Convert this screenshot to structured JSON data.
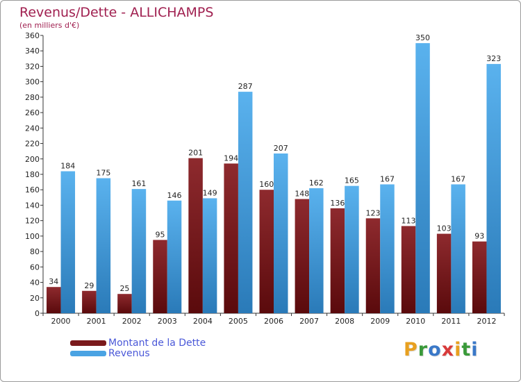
{
  "title": "Revenus/Dette - ALLICHAMPS",
  "subtitle": "(en milliers d'€)",
  "colors": {
    "title": "#a02050",
    "dette": "#7a1a1c",
    "revenus": "#4aa3e3",
    "legend_text": "#4a58d8"
  },
  "chart_data": {
    "type": "bar",
    "categories": [
      "2000",
      "2001",
      "2002",
      "2003",
      "2004",
      "2005",
      "2006",
      "2007",
      "2008",
      "2009",
      "2010",
      "2011",
      "2012"
    ],
    "series": [
      {
        "name": "Montant de la Dette",
        "values": [
          34,
          29,
          25,
          95,
          201,
          194,
          160,
          148,
          136,
          123,
          113,
          103,
          93
        ]
      },
      {
        "name": "Revenus",
        "values": [
          184,
          175,
          161,
          146,
          149,
          287,
          207,
          162,
          165,
          167,
          350,
          167,
          323
        ]
      }
    ],
    "ylim": [
      0,
      360
    ],
    "yticks": [
      0,
      20,
      40,
      60,
      80,
      100,
      120,
      140,
      160,
      180,
      200,
      220,
      240,
      260,
      280,
      300,
      320,
      340,
      360
    ],
    "grid": false,
    "legend": "bottom-left"
  },
  "legend": {
    "items": [
      {
        "label": "Montant de la Dette",
        "color": "#7a1a1c"
      },
      {
        "label": "Revenus",
        "color": "#4aa3e3"
      }
    ]
  },
  "logo": {
    "letters": [
      "P",
      "r",
      "o",
      "x",
      "i",
      "t",
      "i"
    ],
    "colors": [
      "#e8a020",
      "#3a9a3a",
      "#3a78c8",
      "#d83a3a",
      "#e8a020",
      "#3a9a3a",
      "#3a78c8"
    ]
  }
}
